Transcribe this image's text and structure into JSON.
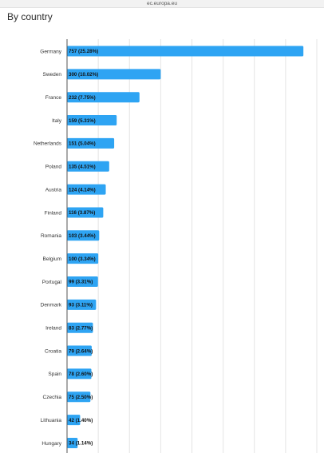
{
  "browser": {
    "url": "ec.europa.eu"
  },
  "section": {
    "title": "By country"
  },
  "chart_data": {
    "type": "bar",
    "orientation": "horizontal",
    "categories": [
      "Germany",
      "Sweden",
      "France",
      "Italy",
      "Netherlands",
      "Poland",
      "Austria",
      "Finland",
      "Romania",
      "Belgium",
      "Portugal",
      "Denmark",
      "Ireland",
      "Croatia",
      "Spain",
      "Czechia",
      "Lithuania",
      "Hungary"
    ],
    "values": [
      757,
      300,
      232,
      159,
      151,
      135,
      124,
      116,
      103,
      100,
      99,
      93,
      83,
      79,
      78,
      75,
      42,
      34
    ],
    "data_labels": [
      "757 (25.28%)",
      "300 (10.02%)",
      "232 (7.75%)",
      "159 (5.31%)",
      "151 (5.04%)",
      "135 (4.51%)",
      "124 (4.14%)",
      "116 (3.87%)",
      "103 (3.44%)",
      "100 (3.34%)",
      "99 (3.31%)",
      "93 (3.11%)",
      "83 (2.77%)",
      "79 (2.64%)",
      "78 (2.60%)",
      "75 (2.50%)",
      "42 (1.40%)",
      "34 (1.14%)"
    ],
    "xlim": [
      0,
      800
    ],
    "grid": true,
    "bar_color": "#2ea4f3"
  }
}
